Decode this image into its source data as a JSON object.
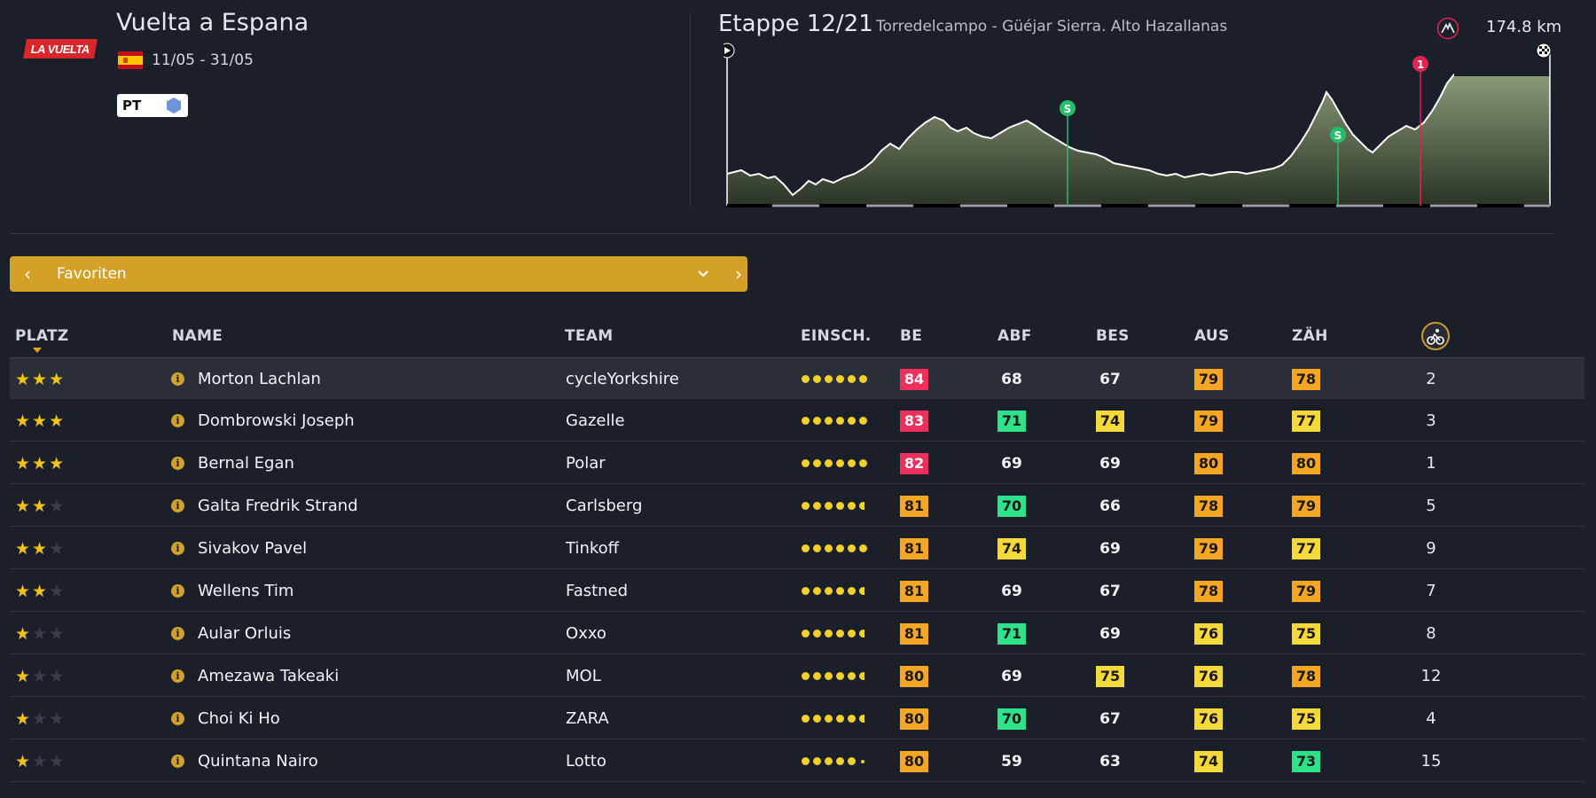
{
  "race": {
    "logo_text": "LA VUELTA",
    "title": "Vuelta a Espana",
    "dates": "11/05 - 31/05",
    "badge": "PT",
    "colors": {
      "logo": "#d8262b",
      "badge_hex": "#6d94d6"
    }
  },
  "stage": {
    "title": "Etappe 12/21",
    "route": "Torredelcampo - Güéjar Sierra. Alto Hazallanas",
    "distance": "174.8 km",
    "profile_markers": [
      {
        "label": "S",
        "type": "sprint",
        "color": "#22c06b"
      },
      {
        "label": "S",
        "type": "sprint",
        "color": "#22c06b"
      },
      {
        "label": "1",
        "type": "climb",
        "color": "#e0244d"
      }
    ]
  },
  "filter": {
    "label": "Favoriten",
    "prev_icon": "chevron-left-icon",
    "dropdown_icon": "chevron-down-icon",
    "next_icon": "chevron-right-icon"
  },
  "table": {
    "headers": {
      "platz": "PLATZ",
      "name": "NAME",
      "team": "TEAM",
      "einsch": "EINSCH.",
      "be": "BE",
      "abf": "ABF",
      "bes": "BES",
      "aus": "AUS",
      "zah": "ZÄH",
      "rank_icon": "cyclist-icon"
    },
    "rows": [
      {
        "stars": 3,
        "name": "Morton Lachlan",
        "team": "cycleYorkshire",
        "dots": 6,
        "be": "84",
        "abf": "68",
        "bes": "67",
        "aus": "79",
        "zah": "78",
        "rank": "2",
        "colors": {
          "be": "red",
          "abf": "none",
          "bes": "none",
          "aus": "orange",
          "zah": "orange"
        }
      },
      {
        "stars": 3,
        "name": "Dombrowski Joseph",
        "team": "Gazelle",
        "dots": 6,
        "be": "83",
        "abf": "71",
        "bes": "74",
        "aus": "79",
        "zah": "77",
        "rank": "3",
        "colors": {
          "be": "red",
          "abf": "green",
          "bes": "yellow",
          "aus": "orange",
          "zah": "yellow"
        }
      },
      {
        "stars": 3,
        "name": "Bernal Egan",
        "team": "Polar",
        "dots": 6,
        "be": "82",
        "abf": "69",
        "bes": "69",
        "aus": "80",
        "zah": "80",
        "rank": "1",
        "colors": {
          "be": "red",
          "abf": "none",
          "bes": "none",
          "aus": "orange",
          "zah": "orange"
        }
      },
      {
        "stars": 2,
        "name": "Galta Fredrik Strand",
        "team": "Carlsberg",
        "dots": 5.5,
        "be": "81",
        "abf": "70",
        "bes": "66",
        "aus": "78",
        "zah": "79",
        "rank": "5",
        "colors": {
          "be": "orange",
          "abf": "green",
          "bes": "none",
          "aus": "orange",
          "zah": "orange"
        }
      },
      {
        "stars": 2,
        "name": "Sivakov Pavel",
        "team": "Tinkoff",
        "dots": 6,
        "be": "81",
        "abf": "74",
        "bes": "69",
        "aus": "79",
        "zah": "77",
        "rank": "9",
        "colors": {
          "be": "orange",
          "abf": "yellow",
          "bes": "none",
          "aus": "orange",
          "zah": "yellow"
        }
      },
      {
        "stars": 2,
        "name": "Wellens Tim",
        "team": "Fastned",
        "dots": 5.5,
        "be": "81",
        "abf": "69",
        "bes": "67",
        "aus": "78",
        "zah": "79",
        "rank": "7",
        "colors": {
          "be": "orange",
          "abf": "none",
          "bes": "none",
          "aus": "orange",
          "zah": "orange"
        }
      },
      {
        "stars": 1,
        "name": "Aular Orluis",
        "team": "Oxxo",
        "dots": 5.5,
        "be": "81",
        "abf": "71",
        "bes": "69",
        "aus": "76",
        "zah": "75",
        "rank": "8",
        "colors": {
          "be": "orange",
          "abf": "green",
          "bes": "none",
          "aus": "yellow",
          "zah": "yellow"
        }
      },
      {
        "stars": 1,
        "name": "Amezawa Takeaki",
        "team": "MOL",
        "dots": 5.5,
        "be": "80",
        "abf": "69",
        "bes": "75",
        "aus": "76",
        "zah": "78",
        "rank": "12",
        "colors": {
          "be": "orange",
          "abf": "none",
          "bes": "yellow",
          "aus": "yellow",
          "zah": "orange"
        }
      },
      {
        "stars": 1,
        "name": "Choi Ki Ho",
        "team": "ZARA",
        "dots": 5.5,
        "be": "80",
        "abf": "70",
        "bes": "67",
        "aus": "76",
        "zah": "75",
        "rank": "4",
        "colors": {
          "be": "orange",
          "abf": "green",
          "bes": "none",
          "aus": "yellow",
          "zah": "yellow"
        }
      },
      {
        "stars": 1,
        "name": "Quintana Nairo",
        "team": "Lotto",
        "dots": 5.1,
        "be": "80",
        "abf": "59",
        "bes": "63",
        "aus": "74",
        "zah": "73",
        "rank": "15",
        "colors": {
          "be": "orange",
          "abf": "none",
          "bes": "none",
          "aus": "yellow",
          "zah": "green"
        }
      }
    ]
  }
}
